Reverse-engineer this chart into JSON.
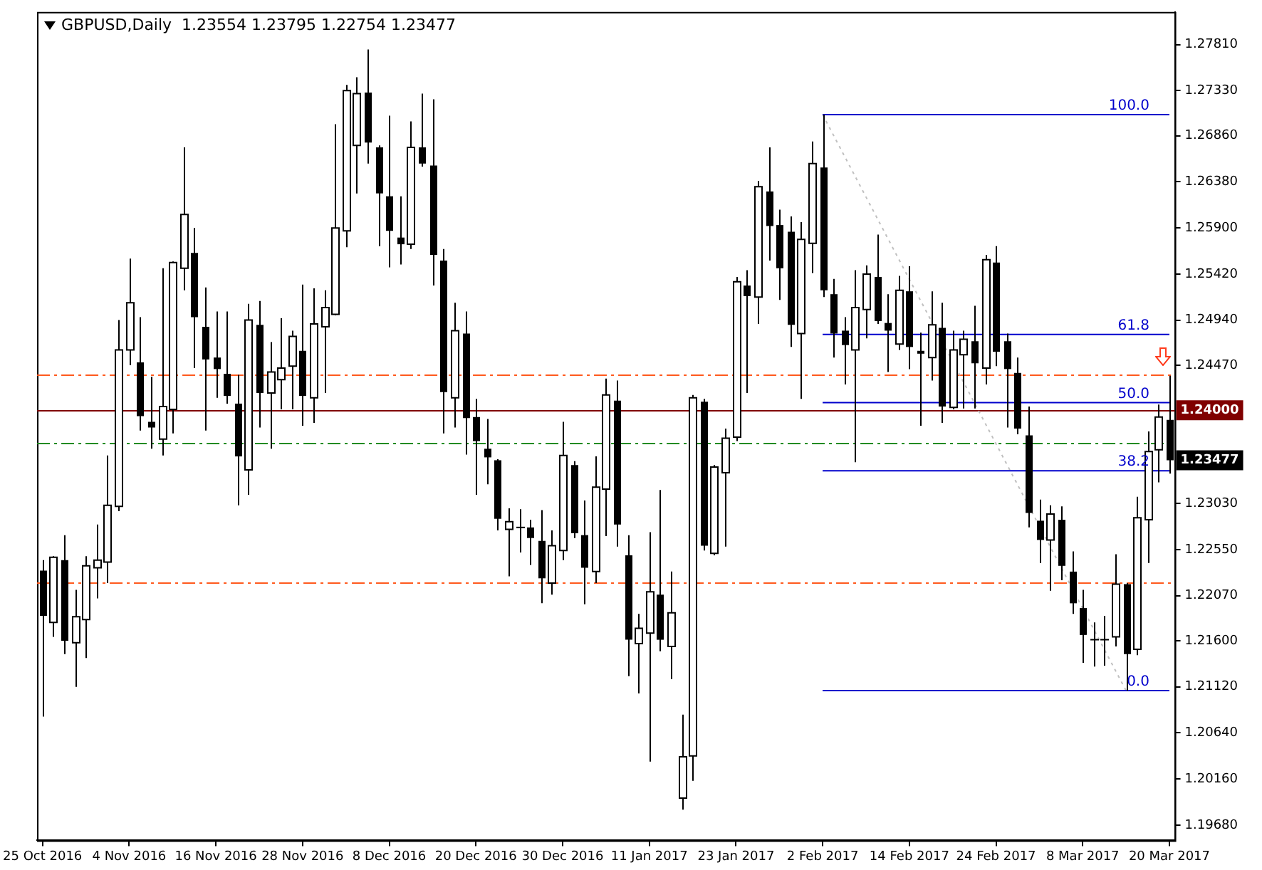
{
  "chart_data": {
    "type": "candlestick",
    "title": "GBPUSD,Daily  1.23554 1.23795 1.22754 1.23477",
    "categories": [
      "25 Oct 2016",
      null,
      null,
      null,
      null,
      null,
      null,
      null,
      "4 Nov 2016",
      null,
      null,
      null,
      null,
      null,
      null,
      null,
      "16 Nov 2016",
      null,
      null,
      null,
      null,
      null,
      null,
      null,
      "28 Nov 2016",
      null,
      null,
      null,
      null,
      null,
      null,
      null,
      "8 Dec 2016",
      null,
      null,
      null,
      null,
      null,
      null,
      null,
      "20 Dec 2016",
      null,
      null,
      null,
      null,
      null,
      null,
      null,
      "30 Dec 2016",
      null,
      null,
      null,
      null,
      null,
      null,
      null,
      "11 Jan 2017",
      null,
      null,
      null,
      null,
      null,
      null,
      null,
      "23 Jan 2017",
      null,
      null,
      null,
      null,
      null,
      null,
      null,
      "2 Feb 2017",
      null,
      null,
      null,
      null,
      null,
      null,
      null,
      "14 Feb 2017",
      null,
      null,
      null,
      null,
      null,
      null,
      null,
      "24 Feb 2017",
      null,
      null,
      null,
      null,
      null,
      null,
      null,
      "8 Mar 2017",
      null,
      null,
      null,
      null,
      null,
      null,
      null,
      "20 Mar 2017"
    ],
    "ohlc": [
      [
        1.2233,
        1.2244,
        1.2081,
        1.2186
      ],
      [
        1.2179,
        1.2248,
        1.2164,
        1.2247
      ],
      [
        1.2244,
        1.227,
        1.2146,
        1.216
      ],
      [
        1.2158,
        1.2213,
        1.2112,
        1.2185
      ],
      [
        1.2182,
        1.2248,
        1.2142,
        1.2238
      ],
      [
        1.2236,
        1.2281,
        1.2204,
        1.2244
      ],
      [
        1.2242,
        1.2353,
        1.222,
        1.2301
      ],
      [
        1.23,
        1.2494,
        1.2295,
        1.2463
      ],
      [
        1.2463,
        1.2558,
        1.2447,
        1.2512
      ],
      [
        1.245,
        1.2497,
        1.2379,
        1.2394
      ],
      [
        1.2388,
        1.2435,
        1.236,
        1.2382
      ],
      [
        1.237,
        1.2548,
        1.2353,
        1.2404
      ],
      [
        1.2401,
        1.2555,
        1.2376,
        1.2554
      ],
      [
        1.2548,
        1.2674,
        1.2525,
        1.2604
      ],
      [
        1.2564,
        1.259,
        1.2444,
        1.2497
      ],
      [
        1.2487,
        1.2528,
        1.2379,
        1.2453
      ],
      [
        1.2455,
        1.2503,
        1.2413,
        1.2443
      ],
      [
        1.2438,
        1.2503,
        1.2407,
        1.2415
      ],
      [
        1.2407,
        1.2437,
        1.2301,
        1.2352
      ],
      [
        1.2338,
        1.2511,
        1.2312,
        1.2494
      ],
      [
        1.2489,
        1.2514,
        1.2382,
        1.2418
      ],
      [
        1.2418,
        1.2471,
        1.236,
        1.244
      ],
      [
        1.2432,
        1.2496,
        1.2401,
        1.2444
      ],
      [
        1.2446,
        1.2483,
        1.2401,
        1.2477
      ],
      [
        1.2462,
        1.2531,
        1.2384,
        1.2415
      ],
      [
        1.2413,
        1.2527,
        1.2387,
        1.249
      ],
      [
        1.2487,
        1.2525,
        1.2418,
        1.2507
      ],
      [
        1.25,
        1.2698,
        1.2499,
        1.259
      ],
      [
        1.2587,
        1.2739,
        1.257,
        1.2733
      ],
      [
        1.2676,
        1.2747,
        1.2626,
        1.273
      ],
      [
        1.2731,
        1.2776,
        1.2657,
        1.2679
      ],
      [
        1.2674,
        1.2676,
        1.2571,
        1.2626
      ],
      [
        1.2623,
        1.2707,
        1.2549,
        1.2587
      ],
      [
        1.258,
        1.2623,
        1.2552,
        1.2573
      ],
      [
        1.2573,
        1.2701,
        1.2568,
        1.2674
      ],
      [
        1.2674,
        1.273,
        1.2654,
        1.2657
      ],
      [
        1.2655,
        1.2724,
        1.253,
        1.2562
      ],
      [
        1.2556,
        1.2568,
        1.2376,
        1.2419
      ],
      [
        1.2413,
        1.2512,
        1.2382,
        1.2483
      ],
      [
        1.248,
        1.2503,
        1.2354,
        1.2392
      ],
      [
        1.2393,
        1.2412,
        1.2312,
        1.2368
      ],
      [
        1.236,
        1.2391,
        1.2323,
        1.2351
      ],
      [
        1.2348,
        1.2349,
        1.2275,
        1.2287
      ],
      [
        1.2276,
        1.2298,
        1.2227,
        1.2284
      ],
      [
        1.2278,
        1.2297,
        1.2252,
        1.2278
      ],
      [
        1.2278,
        1.2286,
        1.2239,
        1.2267
      ],
      [
        1.2264,
        1.2296,
        1.2199,
        1.2225
      ],
      [
        1.222,
        1.2275,
        1.2208,
        1.2259
      ],
      [
        1.2254,
        1.2388,
        1.2244,
        1.2353
      ],
      [
        1.2343,
        1.2347,
        1.2267,
        1.2272
      ],
      [
        1.227,
        1.2306,
        1.2198,
        1.2236
      ],
      [
        1.2232,
        1.2352,
        1.222,
        1.232
      ],
      [
        1.2318,
        1.2433,
        1.2269,
        1.2416
      ],
      [
        1.241,
        1.2431,
        1.2258,
        1.2281
      ],
      [
        1.2249,
        1.227,
        1.2123,
        1.2161
      ],
      [
        1.2157,
        1.2188,
        1.2105,
        1.2173
      ],
      [
        1.2168,
        1.2273,
        1.2034,
        1.2211
      ],
      [
        1.2208,
        1.2317,
        1.2149,
        1.2161
      ],
      [
        1.2154,
        1.2232,
        1.212,
        1.2189
      ],
      [
        1.1996,
        1.2083,
        1.1984,
        1.2039
      ],
      [
        1.204,
        1.2416,
        1.2014,
        1.2413
      ],
      [
        1.2409,
        1.2412,
        1.2254,
        1.2259
      ],
      [
        1.2251,
        1.2343,
        1.2249,
        1.2341
      ],
      [
        1.2335,
        1.2381,
        1.2258,
        1.2371
      ],
      [
        1.2372,
        1.2539,
        1.2368,
        1.2534
      ],
      [
        1.253,
        1.2546,
        1.2418,
        1.2519
      ],
      [
        1.2518,
        1.2639,
        1.249,
        1.2633
      ],
      [
        1.2628,
        1.2674,
        1.2556,
        1.2592
      ],
      [
        1.2593,
        1.2609,
        1.2515,
        1.2548
      ],
      [
        1.2586,
        1.2602,
        1.2466,
        1.2489
      ],
      [
        1.248,
        1.2596,
        1.2412,
        1.2578
      ],
      [
        1.2574,
        1.268,
        1.2543,
        1.2657
      ],
      [
        1.2653,
        1.2708,
        1.2518,
        1.2525
      ],
      [
        1.2521,
        1.2537,
        1.2455,
        1.248
      ],
      [
        1.2483,
        1.2497,
        1.2427,
        1.2468
      ],
      [
        1.2463,
        1.2546,
        1.2346,
        1.2507
      ],
      [
        1.2505,
        1.2551,
        1.2475,
        1.2542
      ],
      [
        1.2539,
        1.2583,
        1.249,
        1.2493
      ],
      [
        1.2491,
        1.2521,
        1.244,
        1.2483
      ],
      [
        1.2469,
        1.254,
        1.2463,
        1.2525
      ],
      [
        1.2524,
        1.255,
        1.2443,
        1.2466
      ],
      [
        1.2462,
        1.2481,
        1.2384,
        1.2459
      ],
      [
        1.2455,
        1.2524,
        1.2431,
        1.2489
      ],
      [
        1.2486,
        1.2512,
        1.2387,
        1.2404
      ],
      [
        1.2403,
        1.2483,
        1.2401,
        1.2463
      ],
      [
        1.2458,
        1.2483,
        1.2402,
        1.2474
      ],
      [
        1.2472,
        1.2509,
        1.2402,
        1.2449
      ],
      [
        1.2444,
        1.2562,
        1.2427,
        1.2557
      ],
      [
        1.2554,
        1.2571,
        1.2446,
        1.2461
      ],
      [
        1.2472,
        1.248,
        1.2382,
        1.2443
      ],
      [
        1.2439,
        1.2455,
        1.2375,
        1.2381
      ],
      [
        1.2374,
        1.2404,
        1.2278,
        1.2293
      ],
      [
        1.2285,
        1.2307,
        1.2241,
        1.2265
      ],
      [
        1.2265,
        1.2301,
        1.2212,
        1.2292
      ],
      [
        1.2286,
        1.23,
        1.2223,
        1.2238
      ],
      [
        1.2232,
        1.2253,
        1.2188,
        1.2199
      ],
      [
        1.2194,
        1.2213,
        1.2137,
        1.2166
      ],
      [
        1.2161,
        1.2179,
        1.2133,
        1.2161
      ],
      [
        1.2161,
        1.2186,
        1.2134,
        1.216
      ],
      [
        1.2164,
        1.225,
        1.2154,
        1.2219
      ],
      [
        1.2219,
        1.222,
        1.2108,
        1.2146
      ],
      [
        1.2151,
        1.231,
        1.2145,
        1.2288
      ],
      [
        1.2286,
        1.2378,
        1.2241,
        1.2357
      ],
      [
        1.2359,
        1.2406,
        1.2325,
        1.2393
      ],
      [
        1.239,
        1.2436,
        1.2334,
        1.2348
      ]
    ],
    "series": [
      {
        "type": "line",
        "color": "#0000cc",
        "x": [
          "2 Feb 2017",
          "20 Mar 2017"
        ],
        "values": [
          1.2708,
          1.2708
        ]
      },
      {
        "type": "line",
        "color": "#0000cc",
        "x": [
          "2 Feb 2017",
          "20 Mar 2017"
        ],
        "values": [
          1.2479,
          1.2479
        ]
      },
      {
        "type": "line",
        "color": "#0000cc",
        "x": [
          "2 Feb 2017",
          "20 Mar 2017"
        ],
        "values": [
          1.2408,
          1.2408
        ]
      },
      {
        "type": "line",
        "color": "#0000cc",
        "x": [
          "2 Feb 2017",
          "20 Mar 2017"
        ],
        "values": [
          1.2337,
          1.2337
        ]
      },
      {
        "type": "line",
        "color": "#0000cc",
        "x": [
          "2 Feb 2017",
          "20 Mar 2017"
        ],
        "values": [
          1.2108,
          1.2108
        ]
      },
      {
        "type": "line",
        "color": "#c0c0c0",
        "line_style": "dotted",
        "values": [
          null,
          null,
          null,
          null,
          null,
          null,
          null,
          null,
          null,
          null,
          null,
          null,
          null,
          null,
          null,
          null,
          null,
          null,
          null,
          null,
          null,
          null,
          null,
          null,
          null,
          null,
          null,
          null,
          null,
          null,
          null,
          null,
          null,
          null,
          null,
          null,
          null,
          null,
          null,
          null,
          null,
          null,
          null,
          null,
          null,
          null,
          null,
          null,
          null,
          null,
          null,
          null,
          null,
          null,
          null,
          null,
          null,
          null,
          null,
          null,
          null,
          null,
          null,
          null,
          null,
          null,
          null,
          null,
          null,
          null,
          null,
          null,
          1.2708,
          null,
          null,
          null,
          null,
          null,
          null,
          null,
          null,
          null,
          null,
          null,
          null,
          null,
          null,
          null,
          null,
          null,
          null,
          null,
          null,
          null,
          null,
          null,
          null,
          null,
          null,
          null,
          1.2108,
          null,
          null,
          null,
          null
        ]
      }
    ],
    "ref_lines": [
      {
        "axis": "y",
        "value": 1.2437,
        "color": "#ff5a1e",
        "line_style": "dashed"
      },
      {
        "axis": "y",
        "value": 1.2221,
        "color": "#ff5a1e",
        "line_style": "dashed"
      },
      {
        "axis": "y",
        "value": 1.2366,
        "color": "#228b22",
        "line_style": "dashed"
      },
      {
        "axis": "y",
        "value": 1.24,
        "label": "1.24000",
        "color": "#800000",
        "line_style": "solid"
      }
    ],
    "annotations": [
      {
        "text": "100.0",
        "x": "20 Mar 2017",
        "y": 1.2708
      },
      {
        "text": "61.8",
        "x": "20 Mar 2017",
        "y": 1.2479
      },
      {
        "text": "50.0",
        "x": "20 Mar 2017",
        "y": 1.2408
      },
      {
        "text": "38.2",
        "x": "20 Mar 2017",
        "y": 1.2337
      },
      {
        "text": "0.0",
        "x": "20 Mar 2017",
        "y": 1.2108
      },
      "1.23477"
    ],
    "ylim": [
      1.1952,
      1.2815
    ],
    "yticks": [
      {
        "value": 1.2781,
        "label": "1.27810"
      },
      {
        "value": 1.2733,
        "label": "1.27330"
      },
      {
        "value": 1.2686,
        "label": "1.26860"
      },
      {
        "value": 1.2638,
        "label": "1.26380"
      },
      {
        "value": 1.259,
        "label": "1.25900"
      },
      {
        "value": 1.2542,
        "label": "1.25420"
      },
      {
        "value": 1.2494,
        "label": "1.24940"
      },
      {
        "value": 1.2447,
        "label": "1.24470"
      },
      {
        "value": 1.2303,
        "label": "1.23030"
      },
      {
        "value": 1.2255,
        "label": "1.22550"
      },
      {
        "value": 1.2207,
        "label": "1.22070"
      },
      {
        "value": 1.216,
        "label": "1.21600"
      },
      {
        "value": 1.2112,
        "label": "1.21120"
      },
      {
        "value": 1.2064,
        "label": "1.20640"
      },
      {
        "value": 1.2016,
        "label": "1.20160"
      },
      {
        "value": 1.1968,
        "label": "1.19680"
      }
    ],
    "grid": false,
    "legend": false
  }
}
